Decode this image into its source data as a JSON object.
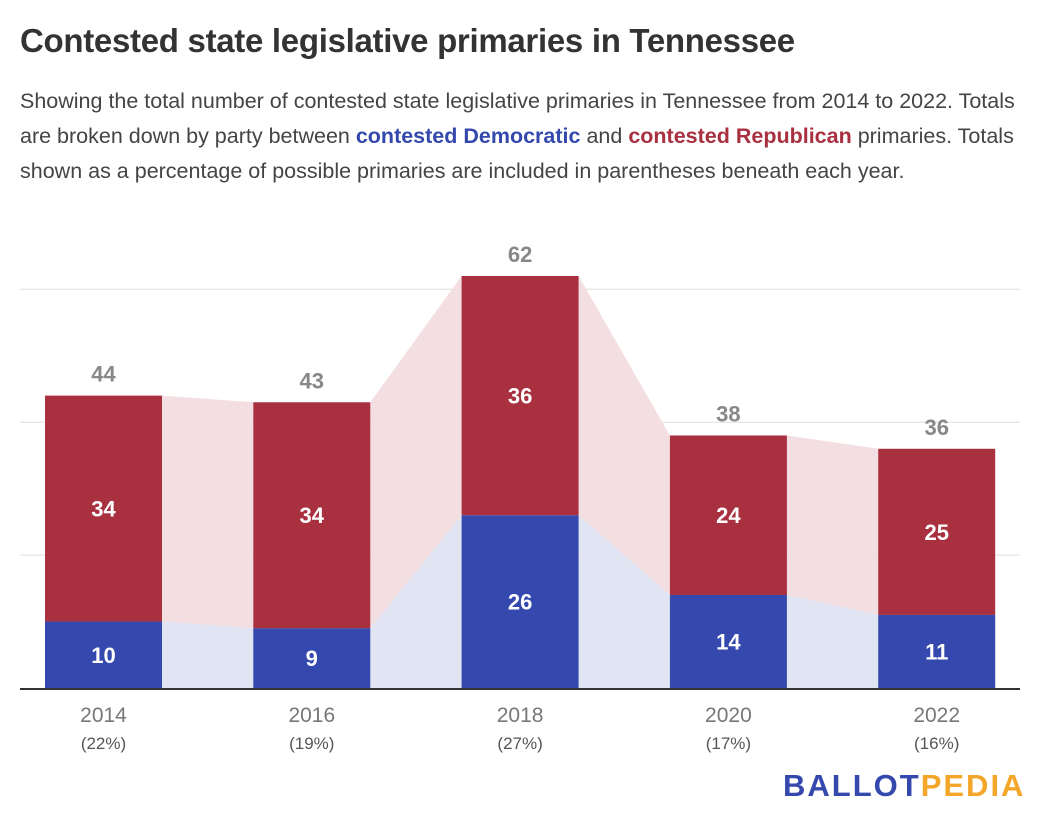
{
  "title": "Contested state legislative primaries in Tennessee",
  "subtitle": {
    "part1": "Showing the total number of contested state legislative primaries in Tennessee from 2014 to 2022. Totals are broken down by party between ",
    "dem_label": "contested Democratic",
    "part2": " and ",
    "rep_label": "contested Republican",
    "part3": " primaries. Totals shown as a percentage of possible primaries are included in parentheses beneath each year."
  },
  "logo": {
    "part1": "BALLOT",
    "part2": "PEDIA"
  },
  "chart_data": {
    "type": "bar",
    "stacked": true,
    "categories": [
      "2014",
      "2016",
      "2018",
      "2020",
      "2022"
    ],
    "percent_labels": [
      "(22%)",
      "(19%)",
      "(27%)",
      "(17%)",
      "(16%)"
    ],
    "series": [
      {
        "name": "contested Democratic",
        "color": "#3448ad",
        "area_color": "#e1e4f3",
        "values": [
          10,
          9,
          26,
          14,
          11
        ]
      },
      {
        "name": "contested Republican",
        "color": "#a8303f",
        "area_color": "#f3dfe1",
        "values": [
          34,
          34,
          36,
          24,
          25
        ]
      }
    ],
    "totals": [
      44,
      43,
      62,
      38,
      36
    ],
    "ylim": [
      0,
      62
    ],
    "gridlines": [
      20,
      40,
      60
    ],
    "grid": true
  }
}
